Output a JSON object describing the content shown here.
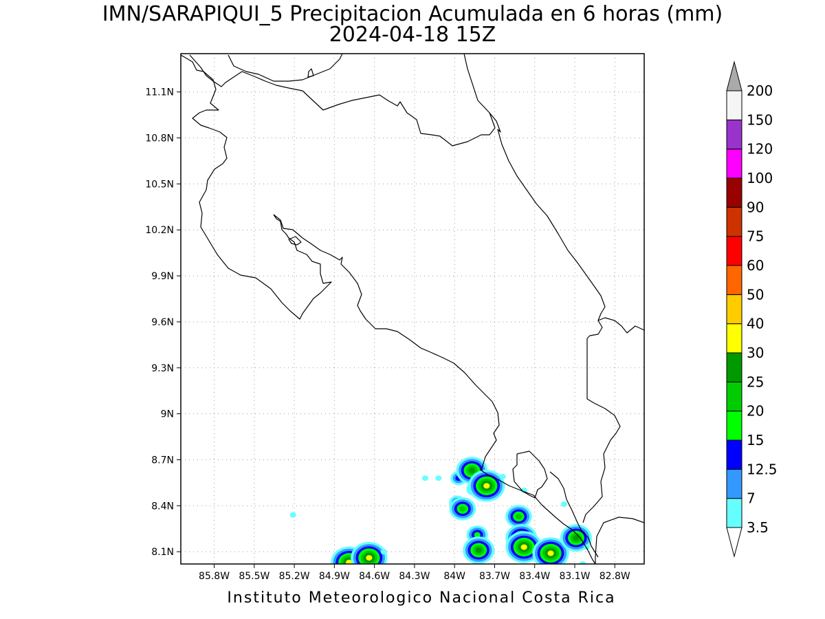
{
  "title": "IMN/SARAPIQUI_5 Precipitacion Acumulada en 6 horas (mm)",
  "subtitle": "2024-04-18 15Z",
  "footer": "Instituto Meteorologico Nacional Costa Rica",
  "map": {
    "lon_range": [
      -86.05,
      -82.58
    ],
    "lat_range": [
      8.02,
      11.35
    ],
    "lon_ticks": [
      {
        "value": -85.8,
        "label": "85.8W"
      },
      {
        "value": -85.5,
        "label": "85.5W"
      },
      {
        "value": -85.2,
        "label": "85.2W"
      },
      {
        "value": -84.9,
        "label": "84.9W"
      },
      {
        "value": -84.6,
        "label": "84.6W"
      },
      {
        "value": -84.3,
        "label": "84.3W"
      },
      {
        "value": -84.0,
        "label": "84W"
      },
      {
        "value": -83.7,
        "label": "83.7W"
      },
      {
        "value": -83.4,
        "label": "83.4W"
      },
      {
        "value": -83.1,
        "label": "83.1W"
      },
      {
        "value": -82.8,
        "label": "82.8W"
      }
    ],
    "lat_ticks": [
      {
        "value": 11.1,
        "label": "11.1N"
      },
      {
        "value": 10.8,
        "label": "10.8N"
      },
      {
        "value": 10.5,
        "label": "10.5N"
      },
      {
        "value": 10.2,
        "label": "10.2N"
      },
      {
        "value": 9.9,
        "label": "9.9N"
      },
      {
        "value": 9.6,
        "label": "9.6N"
      },
      {
        "value": 9.3,
        "label": "9.3N"
      },
      {
        "value": 9.0,
        "label": "9N"
      },
      {
        "value": 8.7,
        "label": "8.7N"
      },
      {
        "value": 8.4,
        "label": "8.4N"
      },
      {
        "value": 8.1,
        "label": "8.1N"
      }
    ],
    "grid": "dotted"
  },
  "legend": {
    "units": "mm",
    "levels": [
      "3.5",
      "7",
      "12.5",
      "15",
      "20",
      "25",
      "30",
      "40",
      "50",
      "60",
      "75",
      "90",
      "100",
      "120",
      "150",
      "200"
    ],
    "colors": [
      "#66ffff",
      "#3399ff",
      "#0000ff",
      "#00ff00",
      "#00cc00",
      "#009900",
      "#ffff00",
      "#ffcc00",
      "#ff6600",
      "#ff0000",
      "#cc3300",
      "#990000",
      "#ff00ff",
      "#9933cc",
      "#f5f5f5",
      "#aaaaaa"
    ],
    "top_arrow_color": "#aaaaaa",
    "bottom_arrow_color": "#ffffff"
  },
  "precip_cells": [
    {
      "lon": -84.79,
      "lat": 8.03,
      "level": "30"
    },
    {
      "lon": -84.64,
      "lat": 8.06,
      "level": "30"
    },
    {
      "lon": -84.53,
      "lat": 8.1,
      "level": "3.5"
    },
    {
      "lon": -85.21,
      "lat": 8.34,
      "level": "3.5"
    },
    {
      "lon": -84.22,
      "lat": 8.58,
      "level": "3.5"
    },
    {
      "lon": -84.12,
      "lat": 8.58,
      "level": "3.5"
    },
    {
      "lon": -83.97,
      "lat": 8.58,
      "level": "12.5"
    },
    {
      "lon": -83.87,
      "lat": 8.63,
      "level": "25"
    },
    {
      "lon": -83.85,
      "lat": 8.51,
      "level": "12.5"
    },
    {
      "lon": -83.76,
      "lat": 8.53,
      "level": "30"
    },
    {
      "lon": -83.98,
      "lat": 8.42,
      "level": "12.5"
    },
    {
      "lon": -83.94,
      "lat": 8.38,
      "level": "20"
    },
    {
      "lon": -83.64,
      "lat": 8.59,
      "level": "3.5"
    },
    {
      "lon": -83.48,
      "lat": 8.5,
      "level": "3.5"
    },
    {
      "lon": -83.83,
      "lat": 8.21,
      "level": "15"
    },
    {
      "lon": -83.82,
      "lat": 8.11,
      "level": "25"
    },
    {
      "lon": -83.52,
      "lat": 8.33,
      "level": "20"
    },
    {
      "lon": -83.5,
      "lat": 8.19,
      "level": "25"
    },
    {
      "lon": -83.48,
      "lat": 8.13,
      "level": "30"
    },
    {
      "lon": -83.28,
      "lat": 8.09,
      "level": "30"
    },
    {
      "lon": -83.11,
      "lat": 8.25,
      "level": "3.5"
    },
    {
      "lon": -83.09,
      "lat": 8.19,
      "level": "25"
    },
    {
      "lon": -83.01,
      "lat": 8.13,
      "level": "3.5"
    },
    {
      "lon": -83.04,
      "lat": 8.02,
      "level": "3.5"
    },
    {
      "lon": -83.18,
      "lat": 8.41,
      "level": "3.5"
    }
  ]
}
